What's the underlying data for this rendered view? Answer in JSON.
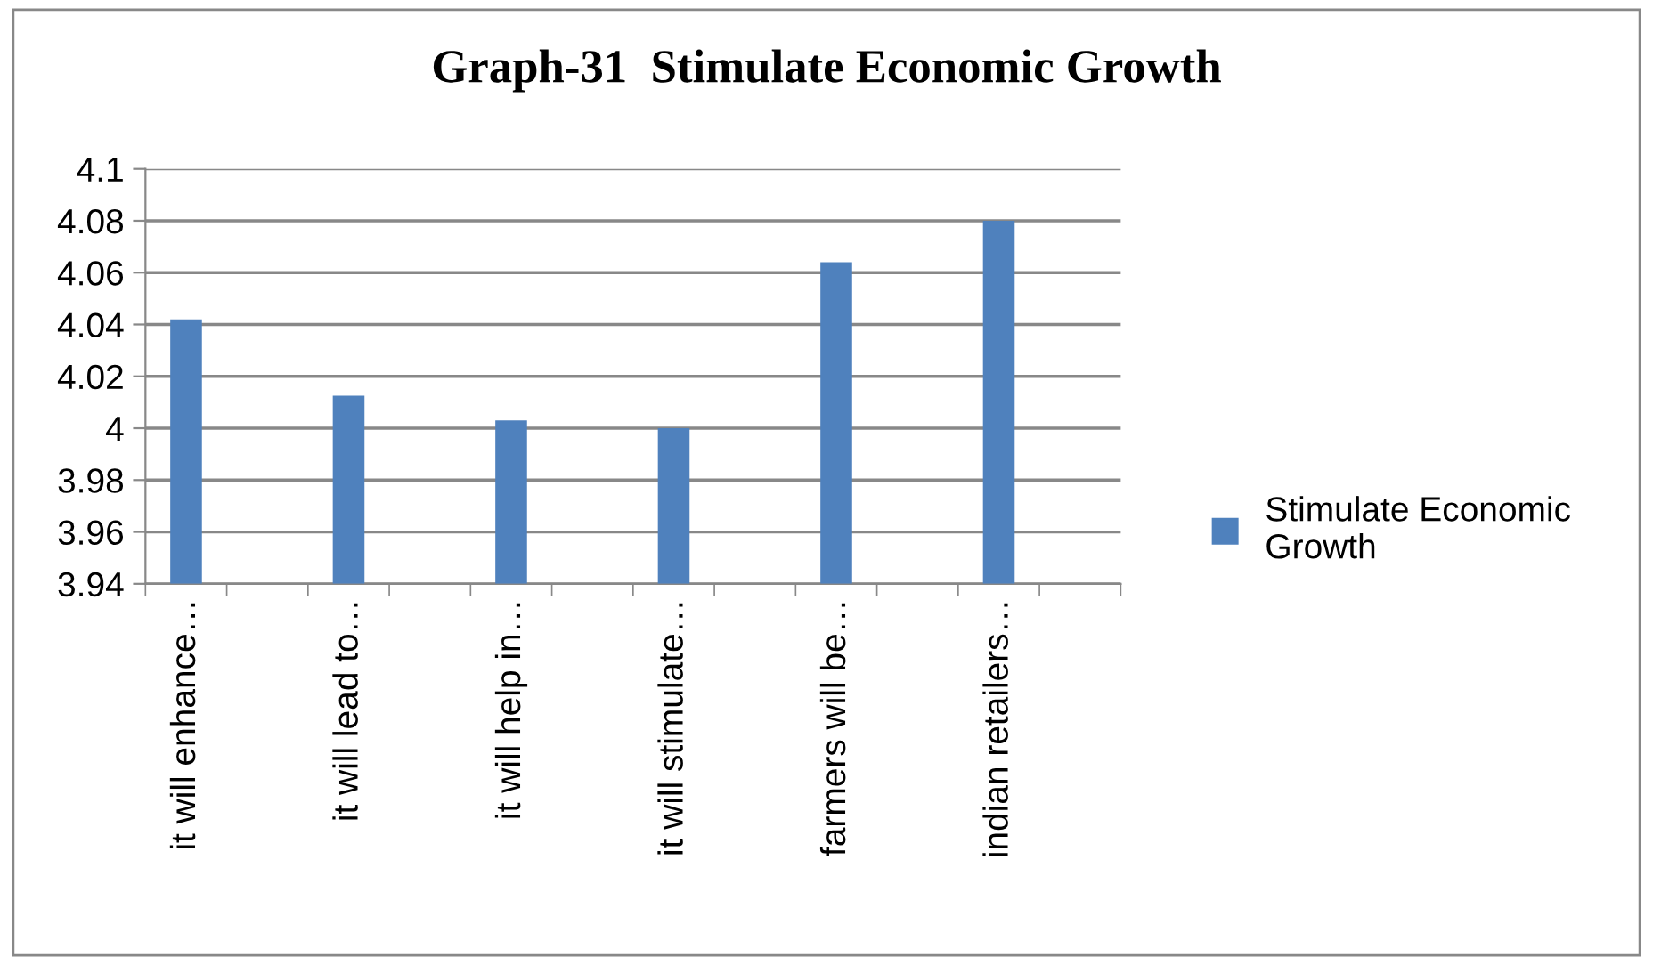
{
  "chart_data": {
    "type": "bar",
    "title": "Graph-31  Stimulate Economic Growth",
    "categories": [
      "it will enhance…",
      null,
      "it will lead to…",
      null,
      "it will help in…",
      null,
      "it will stimulate…",
      null,
      "farmers will be…",
      null,
      "indian retailers…",
      null
    ],
    "series": [
      {
        "name": "Stimulate Economic Growth",
        "color": "#4f81bd",
        "values": [
          4.042,
          null,
          4.0125,
          null,
          4.003,
          null,
          4.0,
          null,
          4.064,
          null,
          4.08,
          null
        ]
      }
    ],
    "ylim": [
      3.94,
      4.1
    ],
    "yticks": [
      3.94,
      3.96,
      3.98,
      4,
      4.02,
      4.04,
      4.06,
      4.08,
      4.1
    ],
    "grid": "y",
    "legend": "right"
  }
}
